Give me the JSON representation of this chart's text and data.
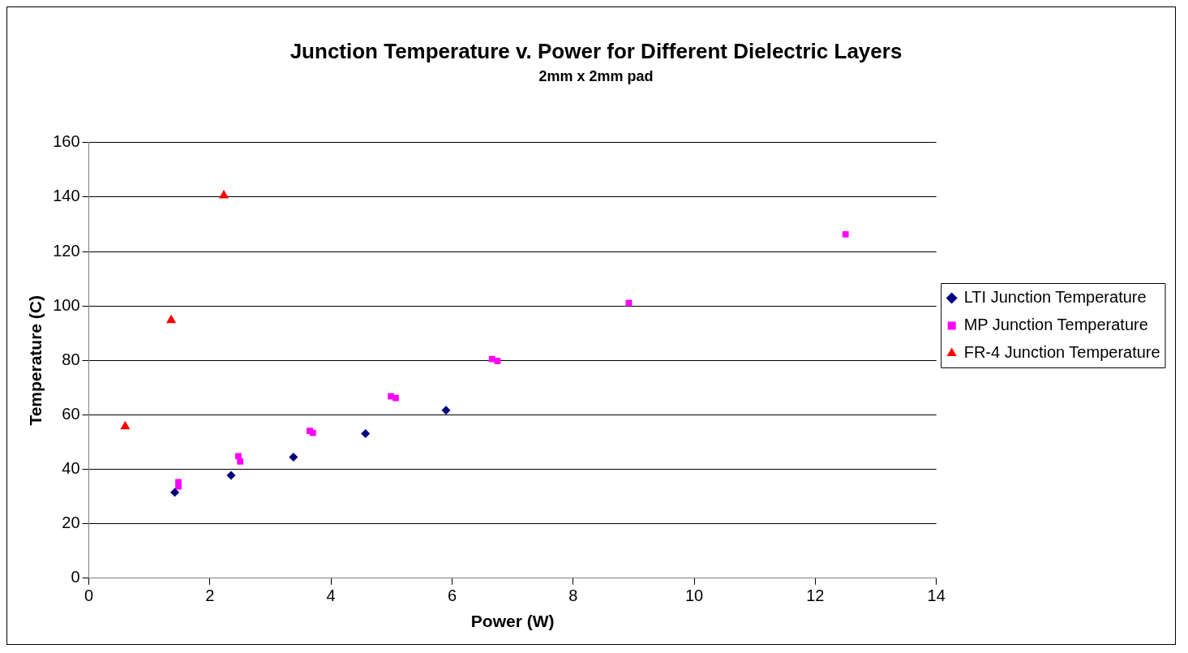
{
  "chart_data": {
    "type": "scatter",
    "title": "Junction Temperature v. Power for Different Dielectric Layers",
    "subtitle": "2mm x 2mm pad",
    "xlabel": "Power (W)",
    "ylabel": "Temperature (C)",
    "xlim": [
      0,
      14
    ],
    "xticks": [
      0,
      2,
      4,
      6,
      8,
      10,
      12,
      14
    ],
    "ylim": [
      0,
      160
    ],
    "yticks": [
      0,
      20,
      40,
      60,
      80,
      100,
      120,
      140,
      160
    ],
    "grid": "y",
    "legend": "right",
    "series": [
      {
        "name": "LTI Junction Temperature",
        "color": "#000080",
        "marker": "diamond",
        "x": [
          1.42,
          2.35,
          3.38,
          4.57,
          5.9
        ],
        "values": [
          31.5,
          37.8,
          44.5,
          53.1,
          61.7
        ]
      },
      {
        "name": "MP Junction Temperature",
        "color": "#ff00ff",
        "marker": "square",
        "x": [
          1.48,
          1.48,
          2.47,
          2.5,
          3.65,
          3.7,
          4.99,
          5.07,
          6.66,
          6.75,
          8.92,
          12.5
        ],
        "values": [
          35.3,
          33.7,
          44.8,
          42.9,
          54.1,
          53.4,
          66.8,
          66.2,
          80.5,
          79.8,
          101.1,
          126.3
        ]
      },
      {
        "name": "FR-4 Junction Temperature",
        "color": "#ff0000",
        "marker": "triangle",
        "x": [
          0.6,
          1.36,
          2.23
        ],
        "values": [
          55.7,
          94.8,
          140.6
        ]
      }
    ]
  }
}
